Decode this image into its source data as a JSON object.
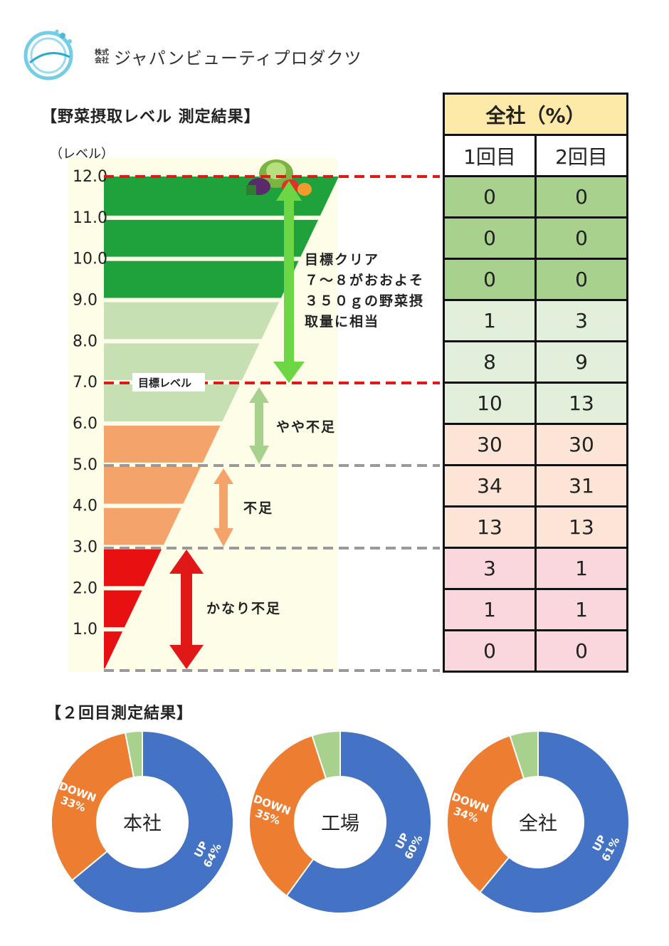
{
  "company": {
    "prefix": "株式会社",
    "name": "ジャパンビューティプロダクツ"
  },
  "section1_title": "【野菜摂取レベル 測定結果】",
  "section2_title": "【２回目測定結果】",
  "ladder": {
    "unit_label": "（レベル）",
    "levels": [
      "12.0",
      "11.0",
      "10.0",
      "9.0",
      "8.0",
      "7.0",
      "6.0",
      "5.0",
      "4.0",
      "3.0",
      "2.0",
      "1.0"
    ],
    "target_label": "目標レベル",
    "zones": [
      {
        "id": "clear",
        "label_lines": [
          "目標クリア",
          "７～８がおおよそ",
          "３５０ｇの野菜摂",
          "取量に相当"
        ],
        "color": "#6cd645"
      },
      {
        "id": "slight",
        "label": "やや不足",
        "color": "#a9d18e"
      },
      {
        "id": "lack",
        "label": "不足",
        "color": "#f4a46a"
      },
      {
        "id": "severe",
        "label": "かなり不足",
        "color": "#e01818"
      }
    ],
    "colors": {
      "dark_green": "#1fa23b",
      "light_green": "#c6e0b4",
      "orange": "#f4a46a",
      "red": "#e81010",
      "panel": "#fdfde8",
      "target_line": "#e01818",
      "gray_line": "#9a9a9a"
    }
  },
  "table": {
    "header": "全社（%）",
    "columns": [
      "1回目",
      "2回目"
    ],
    "rows": [
      {
        "level": "12.0",
        "first": "0",
        "second": "0",
        "band": "dg"
      },
      {
        "level": "11.0",
        "first": "0",
        "second": "0",
        "band": "dg"
      },
      {
        "level": "10.0",
        "first": "0",
        "second": "0",
        "band": "dg"
      },
      {
        "level": "9.0",
        "first": "1",
        "second": "3",
        "band": "lg"
      },
      {
        "level": "8.0",
        "first": "8",
        "second": "9",
        "band": "lg"
      },
      {
        "level": "7.0",
        "first": "10",
        "second": "13",
        "band": "lg"
      },
      {
        "level": "6.0",
        "first": "30",
        "second": "30",
        "band": "pk"
      },
      {
        "level": "5.0",
        "first": "34",
        "second": "31",
        "band": "pk"
      },
      {
        "level": "4.0",
        "first": "13",
        "second": "13",
        "band": "pk"
      },
      {
        "level": "3.0",
        "first": "3",
        "second": "1",
        "band": "rd"
      },
      {
        "level": "2.0",
        "first": "1",
        "second": "1",
        "band": "rd"
      },
      {
        "level": "1.0",
        "first": "0",
        "second": "0",
        "band": "rd"
      }
    ]
  },
  "chart_data": [
    {
      "type": "pie",
      "title": "本社",
      "series": [
        {
          "name": "UP",
          "value": 64,
          "label": "64%",
          "color": "#4472c4"
        },
        {
          "name": "DOWN",
          "value": 33,
          "label": "33%",
          "color": "#ed7d31"
        },
        {
          "name": "",
          "value": 3,
          "label": "",
          "color": "#a9d18e"
        }
      ]
    },
    {
      "type": "pie",
      "title": "工場",
      "series": [
        {
          "name": "UP",
          "value": 60,
          "label": "60%",
          "color": "#4472c4"
        },
        {
          "name": "DOWN",
          "value": 35,
          "label": "35%",
          "color": "#ed7d31"
        },
        {
          "name": "",
          "value": 5,
          "label": "",
          "color": "#a9d18e"
        }
      ]
    },
    {
      "type": "pie",
      "title": "全社",
      "series": [
        {
          "name": "UP",
          "value": 61,
          "label": "61%",
          "color": "#4472c4"
        },
        {
          "name": "DOWN",
          "value": 34,
          "label": "34%",
          "color": "#ed7d31"
        },
        {
          "name": "",
          "value": 5,
          "label": "",
          "color": "#a9d18e"
        }
      ]
    }
  ]
}
